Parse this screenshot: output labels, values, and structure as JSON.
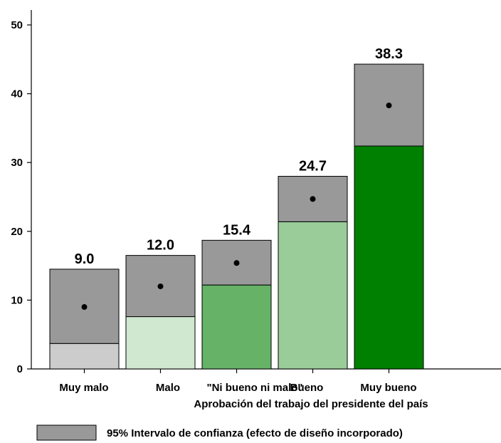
{
  "chart_data": {
    "type": "bar",
    "categories": [
      "Muy malo",
      "Malo",
      "\"Ni bueno ni malo\"",
      "Bueno",
      "Muy bueno"
    ],
    "values": [
      9.0,
      12.0,
      15.4,
      24.7,
      38.3
    ],
    "value_labels": [
      "9.0",
      "12.0",
      "15.4",
      "24.7",
      "38.3"
    ],
    "ci_lower": [
      3.7,
      7.6,
      12.2,
      21.4,
      32.4
    ],
    "ci_upper": [
      14.5,
      16.5,
      18.7,
      28.0,
      44.3
    ],
    "bar_colors": [
      "#cccccc",
      "#cfe8cf",
      "#66b266",
      "#99cc99",
      "#008000"
    ],
    "ci_color": "#999999",
    "xlabel": "Aprobación del trabajo del presidente del país",
    "ylabel": "",
    "ylim": [
      0,
      50
    ],
    "yticks": [
      0,
      10,
      20,
      30,
      40,
      50
    ],
    "grid": false,
    "legend": {
      "position": "bottom",
      "label": "95% Intervalo de confianza  (efecto de diseño incorporado)"
    }
  }
}
